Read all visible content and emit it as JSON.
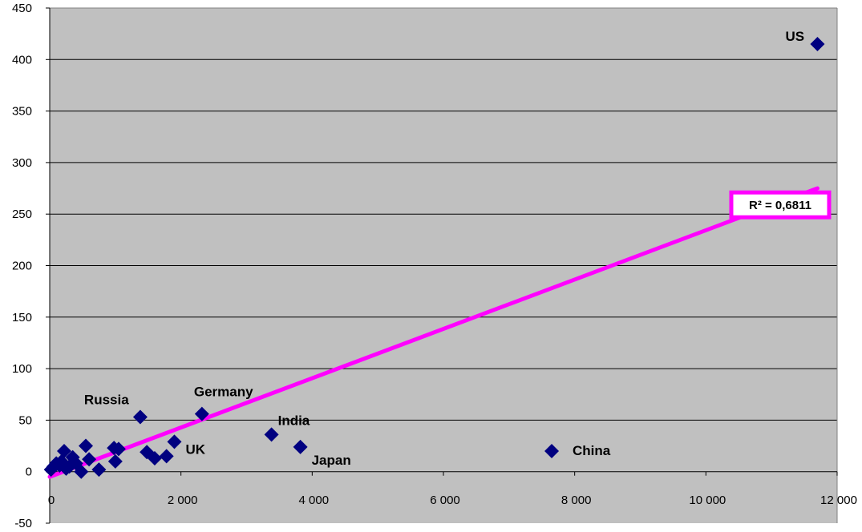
{
  "chart_data": {
    "type": "scatter",
    "title": "",
    "xlabel": "",
    "ylabel": "",
    "xlim": [
      0,
      12000
    ],
    "ylim": [
      -50,
      450
    ],
    "xticks": [
      0,
      2000,
      4000,
      6000,
      8000,
      10000,
      12000
    ],
    "xtick_labels": [
      "0",
      "2 000",
      "4 000",
      "6 000",
      "8 000",
      "10 000",
      "12 000"
    ],
    "yticks": [
      -50,
      0,
      50,
      100,
      150,
      200,
      250,
      300,
      350,
      400,
      450
    ],
    "ytick_labels": [
      "-50",
      "0",
      "50",
      "100",
      "150",
      "200",
      "250",
      "300",
      "350",
      "400",
      "450"
    ],
    "grid": "horizontal",
    "plot_background": "#c0c0c0",
    "marker_color": "#000080",
    "trendline_color": "#ff00ff",
    "points": [
      {
        "x": 11700,
        "y": 415,
        "label": "US"
      },
      {
        "x": 7650,
        "y": 20,
        "label": "China"
      },
      {
        "x": 3820,
        "y": 24,
        "label": "Japan"
      },
      {
        "x": 3380,
        "y": 36,
        "label": "India"
      },
      {
        "x": 2320,
        "y": 56,
        "label": "Germany"
      },
      {
        "x": 1380,
        "y": 53,
        "label": "Russia"
      },
      {
        "x": 1900,
        "y": 29,
        "label": "UK"
      },
      {
        "x": 1780,
        "y": 15,
        "label": ""
      },
      {
        "x": 1600,
        "y": 13,
        "label": ""
      },
      {
        "x": 1480,
        "y": 19,
        "label": ""
      },
      {
        "x": 1050,
        "y": 22,
        "label": ""
      },
      {
        "x": 980,
        "y": 23,
        "label": ""
      },
      {
        "x": 1000,
        "y": 10,
        "label": ""
      },
      {
        "x": 750,
        "y": 2,
        "label": ""
      },
      {
        "x": 600,
        "y": 12,
        "label": ""
      },
      {
        "x": 550,
        "y": 25,
        "label": ""
      },
      {
        "x": 480,
        "y": 0,
        "label": ""
      },
      {
        "x": 400,
        "y": 8,
        "label": ""
      },
      {
        "x": 350,
        "y": 14,
        "label": ""
      },
      {
        "x": 300,
        "y": 5,
        "label": ""
      },
      {
        "x": 250,
        "y": 3,
        "label": ""
      },
      {
        "x": 220,
        "y": 20,
        "label": ""
      },
      {
        "x": 180,
        "y": 10,
        "label": ""
      },
      {
        "x": 150,
        "y": 6,
        "label": ""
      },
      {
        "x": 100,
        "y": 8,
        "label": ""
      },
      {
        "x": 60,
        "y": 5,
        "label": ""
      },
      {
        "x": 20,
        "y": 2,
        "label": ""
      }
    ],
    "trendline": {
      "x": [
        0,
        11700
      ],
      "y": [
        -5,
        275
      ]
    },
    "annotation": {
      "text": "R² = 0,6811",
      "x": 10900,
      "y": 257
    }
  }
}
